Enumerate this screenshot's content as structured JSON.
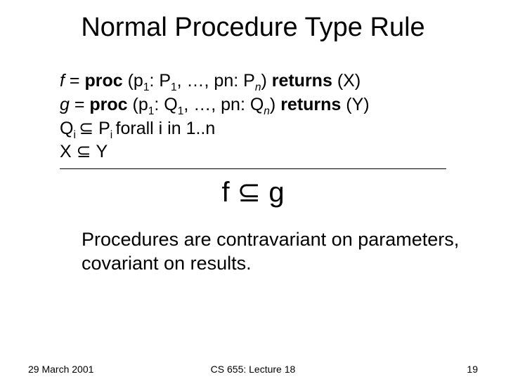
{
  "title": "Normal Procedure Type Rule",
  "premises": {
    "f_lhs": "f ",
    "f_eq": "= ",
    "f_proc": "proc ",
    "f_open": "(p",
    "f_sub1": "1",
    "f_colon1": ": P",
    "f_sub1b": "1",
    "f_mid": ", …, pn: P",
    "f_subn": "n",
    "f_close": ") ",
    "f_ret": "returns ",
    "f_retv": "(X)",
    "g_lhs": "g ",
    "g_eq": "= ",
    "g_proc": "proc ",
    "g_open": "(p",
    "g_sub1": "1",
    "g_colon1": ": Q",
    "g_sub1b": "1",
    "g_mid": ", …, pn: Q",
    "g_subn": "n",
    "g_close": ") ",
    "g_ret": "returns ",
    "g_retv": "(Y)",
    "q_lhs": "Q",
    "q_subi": "i ",
    "subset1": "⊆ ",
    "p_lhs": "P",
    "p_subi": "i ",
    "forall": "forall i in 1..n",
    "x": "X ",
    "subset2": "⊆ ",
    "y": "Y"
  },
  "conclusion": {
    "f": "f ",
    "sub": "⊆ ",
    "g": "g"
  },
  "note": "Procedures are contravariant on parameters, covariant on results.",
  "footer": {
    "date": "29 March 2001",
    "center": "CS 655: Lecture 18",
    "page": "19"
  },
  "style": {
    "bg": "#ffffff",
    "fg": "#000000"
  }
}
